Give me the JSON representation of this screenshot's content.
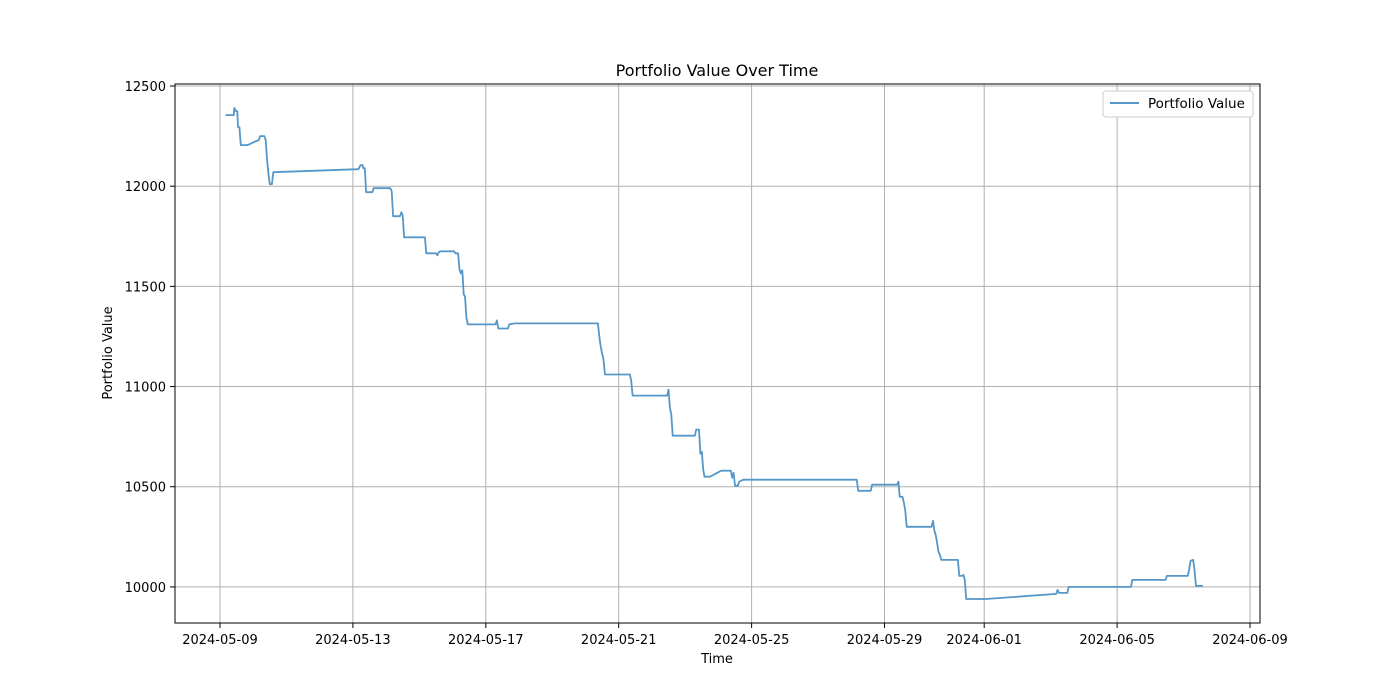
{
  "chart_data": {
    "type": "line",
    "title": "Portfolio Value Over Time",
    "xlabel": "Time",
    "ylabel": "Portfolio Value",
    "xlim": [
      "2024-05-08",
      "2024-06-09"
    ],
    "ylim": [
      9820,
      12510
    ],
    "x_ticks": [
      "2024-05-09",
      "2024-05-13",
      "2024-05-17",
      "2024-05-21",
      "2024-05-25",
      "2024-05-29",
      "2024-06-01",
      "2024-06-05",
      "2024-06-09"
    ],
    "y_ticks": [
      10000,
      10500,
      11000,
      11500,
      12000,
      12500
    ],
    "grid": true,
    "legend_position": "top-right",
    "series": [
      {
        "name": "Portfolio Value",
        "color": "#5597c8",
        "points": [
          [
            "2024-05-09 04:00",
            12355
          ],
          [
            "2024-05-09 10:00",
            12355
          ],
          [
            "2024-05-09 10:20",
            12390
          ],
          [
            "2024-05-09 11:30",
            12375
          ],
          [
            "2024-05-09 12:30",
            12375
          ],
          [
            "2024-05-09 13:00",
            12295
          ],
          [
            "2024-05-09 14:00",
            12295
          ],
          [
            "2024-05-09 15:00",
            12205
          ],
          [
            "2024-05-09 20:00",
            12205
          ],
          [
            "2024-05-10 02:00",
            12225
          ],
          [
            "2024-05-10 04:00",
            12230
          ],
          [
            "2024-05-10 05:00",
            12250
          ],
          [
            "2024-05-10 08:00",
            12250
          ],
          [
            "2024-05-10 09:00",
            12230
          ],
          [
            "2024-05-10 10:00",
            12130
          ],
          [
            "2024-05-10 11:00",
            12060
          ],
          [
            "2024-05-10 12:00",
            12010
          ],
          [
            "2024-05-10 13:30",
            12010
          ],
          [
            "2024-05-10 14:30",
            12070
          ],
          [
            "2024-05-13 04:00",
            12085
          ],
          [
            "2024-05-13 05:30",
            12105
          ],
          [
            "2024-05-13 07:00",
            12105
          ],
          [
            "2024-05-13 07:30",
            12090
          ],
          [
            "2024-05-13 08:30",
            12090
          ],
          [
            "2024-05-13 09:00",
            12040
          ],
          [
            "2024-05-13 09:30",
            11970
          ],
          [
            "2024-05-13 14:00",
            11970
          ],
          [
            "2024-05-13 15:00",
            11990
          ],
          [
            "2024-05-14 03:00",
            11990
          ],
          [
            "2024-05-14 04:00",
            11975
          ],
          [
            "2024-05-14 05:00",
            11850
          ],
          [
            "2024-05-14 10:00",
            11850
          ],
          [
            "2024-05-14 11:00",
            11870
          ],
          [
            "2024-05-14 12:00",
            11855
          ],
          [
            "2024-05-14 13:00",
            11745
          ],
          [
            "2024-05-15 04:00",
            11745
          ],
          [
            "2024-05-15 05:00",
            11665
          ],
          [
            "2024-05-15 12:00",
            11665
          ],
          [
            "2024-05-15 13:00",
            11655
          ],
          [
            "2024-05-15 14:00",
            11670
          ],
          [
            "2024-05-15 15:00",
            11675
          ],
          [
            "2024-05-16 01:00",
            11675
          ],
          [
            "2024-05-16 02:00",
            11665
          ],
          [
            "2024-05-16 04:00",
            11665
          ],
          [
            "2024-05-16 05:00",
            11585
          ],
          [
            "2024-05-16 06:00",
            11565
          ],
          [
            "2024-05-16 07:00",
            11580
          ],
          [
            "2024-05-16 08:00",
            11460
          ],
          [
            "2024-05-16 09:00",
            11450
          ],
          [
            "2024-05-16 10:00",
            11345
          ],
          [
            "2024-05-16 11:00",
            11310
          ],
          [
            "2024-05-17 07:00",
            11310
          ],
          [
            "2024-05-17 08:00",
            11330
          ],
          [
            "2024-05-17 09:00",
            11290
          ],
          [
            "2024-05-17 16:00",
            11290
          ],
          [
            "2024-05-17 17:00",
            11310
          ],
          [
            "2024-05-17 21:00",
            11315
          ],
          [
            "2024-05-20 09:00",
            11315
          ],
          [
            "2024-05-20 10:00",
            11250
          ],
          [
            "2024-05-20 11:00",
            11200
          ],
          [
            "2024-05-20 12:00",
            11165
          ],
          [
            "2024-05-20 13:00",
            11135
          ],
          [
            "2024-05-20 14:00",
            11060
          ],
          [
            "2024-05-21 07:00",
            11060
          ],
          [
            "2024-05-21 08:00",
            11060
          ],
          [
            "2024-05-21 09:00",
            11030
          ],
          [
            "2024-05-21 10:00",
            10955
          ],
          [
            "2024-05-22 11:00",
            10955
          ],
          [
            "2024-05-22 12:00",
            10985
          ],
          [
            "2024-05-22 13:00",
            10895
          ],
          [
            "2024-05-22 14:00",
            10860
          ],
          [
            "2024-05-22 15:00",
            10755
          ],
          [
            "2024-05-23 07:00",
            10755
          ],
          [
            "2024-05-23 08:00",
            10785
          ],
          [
            "2024-05-23 10:00",
            10785
          ],
          [
            "2024-05-23 11:00",
            10665
          ],
          [
            "2024-05-23 12:00",
            10675
          ],
          [
            "2024-05-23 13:00",
            10585
          ],
          [
            "2024-05-23 14:00",
            10550
          ],
          [
            "2024-05-23 18:00",
            10550
          ],
          [
            "2024-05-24 02:00",
            10580
          ],
          [
            "2024-05-24 09:00",
            10580
          ],
          [
            "2024-05-24 10:00",
            10545
          ],
          [
            "2024-05-24 11:00",
            10570
          ],
          [
            "2024-05-24 12:00",
            10505
          ],
          [
            "2024-05-24 14:00",
            10505
          ],
          [
            "2024-05-24 15:00",
            10525
          ],
          [
            "2024-05-24 18:00",
            10535
          ],
          [
            "2024-05-28 04:00",
            10535
          ],
          [
            "2024-05-28 05:00",
            10480
          ],
          [
            "2024-05-28 14:00",
            10480
          ],
          [
            "2024-05-28 15:00",
            10510
          ],
          [
            "2024-05-29 09:00",
            10510
          ],
          [
            "2024-05-29 10:00",
            10525
          ],
          [
            "2024-05-29 11:00",
            10450
          ],
          [
            "2024-05-29 13:00",
            10450
          ],
          [
            "2024-05-29 14:00",
            10420
          ],
          [
            "2024-05-29 15:00",
            10380
          ],
          [
            "2024-05-29 16:00",
            10300
          ],
          [
            "2024-05-30 10:00",
            10300
          ],
          [
            "2024-05-30 11:00",
            10330
          ],
          [
            "2024-05-30 12:00",
            10280
          ],
          [
            "2024-05-30 13:00",
            10260
          ],
          [
            "2024-05-30 14:00",
            10220
          ],
          [
            "2024-05-30 15:00",
            10175
          ],
          [
            "2024-05-30 16:00",
            10160
          ],
          [
            "2024-05-30 17:00",
            10135
          ],
          [
            "2024-05-31 05:00",
            10135
          ],
          [
            "2024-05-31 06:00",
            10055
          ],
          [
            "2024-05-31 08:00",
            10055
          ],
          [
            "2024-05-31 09:00",
            10060
          ],
          [
            "2024-05-31 10:00",
            10035
          ],
          [
            "2024-05-31 11:00",
            9940
          ],
          [
            "2024-06-01 01:00",
            9940
          ],
          [
            "2024-06-03 04:00",
            9965
          ],
          [
            "2024-06-03 05:00",
            9985
          ],
          [
            "2024-06-03 06:00",
            9970
          ],
          [
            "2024-06-03 12:00",
            9970
          ],
          [
            "2024-06-03 13:00",
            10000
          ],
          [
            "2024-06-05 10:00",
            10000
          ],
          [
            "2024-06-05 11:00",
            10035
          ],
          [
            "2024-06-06 11:00",
            10035
          ],
          [
            "2024-06-06 12:00",
            10055
          ],
          [
            "2024-06-07 03:00",
            10055
          ],
          [
            "2024-06-07 04:00",
            10085
          ],
          [
            "2024-06-07 05:00",
            10130
          ],
          [
            "2024-06-07 07:00",
            10135
          ],
          [
            "2024-06-07 08:00",
            10080
          ],
          [
            "2024-06-07 09:00",
            10005
          ],
          [
            "2024-06-07 14:00",
            10005
          ]
        ]
      }
    ]
  }
}
